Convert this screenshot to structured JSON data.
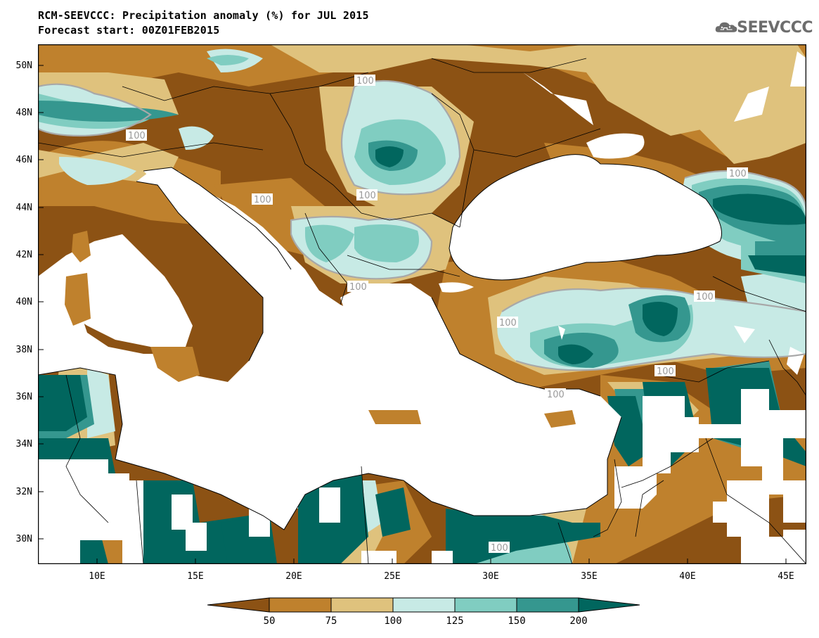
{
  "header": {
    "title_line1": "RCM-SEEVCCC: Precipitation anomaly (%) for JUL 2015",
    "title_line2": "Forecast start: 00Z01FEB2015",
    "logo_text": "SEEVCCC"
  },
  "map": {
    "projection": "lat-lon",
    "lon_range": [
      7,
      46
    ],
    "lat_range": [
      29,
      51
    ],
    "lat_ticks": [
      "50N",
      "48N",
      "46N",
      "44N",
      "42N",
      "40N",
      "38N",
      "36N",
      "34N",
      "32N",
      "30N"
    ],
    "lon_ticks": [
      "10E",
      "15E",
      "20E",
      "25E",
      "30E",
      "35E",
      "40E",
      "45E"
    ],
    "contour_labels": [
      "100",
      "100",
      "100",
      "100",
      "100",
      "100",
      "100",
      "100",
      "100",
      "100",
      "100"
    ],
    "colors": {
      "below_50": "#8c5214",
      "50_75": "#bf812d",
      "75_100": "#dfc27d",
      "100_125": "#c7eae5",
      "125_150": "#80cdc1",
      "150_200": "#35978f",
      "above_200": "#01665e",
      "sea": "#ffffff",
      "contour_100": "#a8a8a8"
    }
  },
  "legend": {
    "labels": [
      "50",
      "75",
      "100",
      "125",
      "150",
      "200"
    ],
    "colors": [
      "#8c5214",
      "#bf812d",
      "#dfc27d",
      "#c7eae5",
      "#80cdc1",
      "#35978f",
      "#01665e"
    ]
  }
}
